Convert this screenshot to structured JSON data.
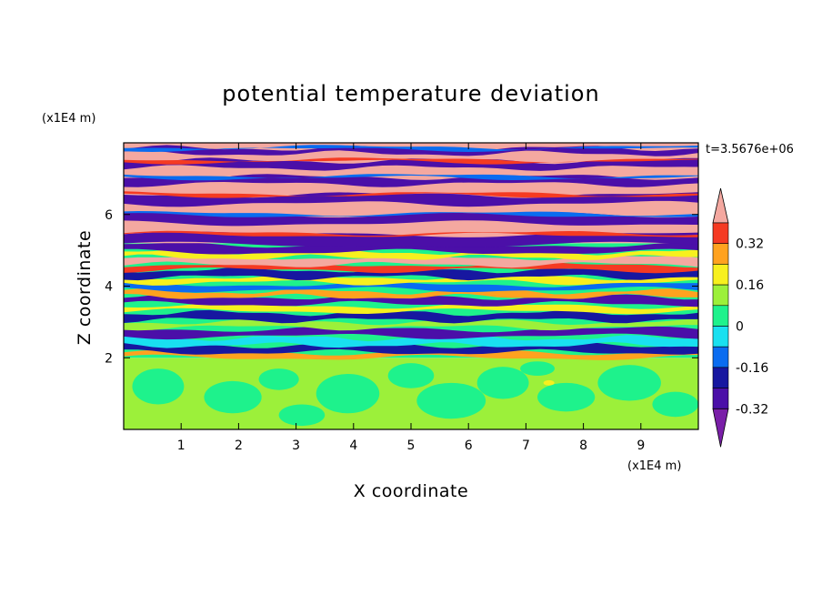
{
  "chart_data": {
    "type": "heatmap",
    "title": "potential temperature deviation",
    "xlabel": "X coordinate",
    "ylabel": "Z coordinate",
    "x_unit": "(x1E4 m)",
    "y_unit": "(x1E4 m)",
    "time_label": "t=3.5676e+06",
    "x_ticks": [
      "1",
      "2",
      "3",
      "4",
      "5",
      "6",
      "7",
      "8",
      "9"
    ],
    "y_ticks": [
      "2",
      "4",
      "6"
    ],
    "xlim": [
      0,
      10
    ],
    "ylim": [
      0,
      8
    ],
    "colorbar": {
      "tick_labels": [
        "0.32",
        "0.16",
        "0",
        "-0.16",
        "-0.32"
      ],
      "tick_values": [
        0.32,
        0.16,
        0,
        -0.16,
        -0.32
      ],
      "levels": [
        -0.4,
        -0.32,
        -0.24,
        -0.16,
        -0.08,
        0,
        0.08,
        0.16,
        0.24,
        0.32,
        0.4
      ],
      "colors": [
        "#7a1fa8",
        "#4b0fa8",
        "#1717a0",
        "#0a6cf0",
        "#19e0f0",
        "#1ef28c",
        "#9cf03a",
        "#f7f01e",
        "#ffa21f",
        "#f53a22",
        "#f4a8a0"
      ],
      "extend": "both"
    },
    "description_layers": [
      {
        "z_range": [
          0,
          2
        ],
        "pattern": "mixed green blobs",
        "colors": [
          "#9cf03a",
          "#1ef28c"
        ]
      },
      {
        "z_range": [
          2,
          5
        ],
        "pattern": "turbulent multicolor bands"
      },
      {
        "z_range": [
          5,
          8
        ],
        "pattern": "alternating purple and pink stripes",
        "colors": [
          "#7a1fa8",
          "#f4a8a0"
        ]
      }
    ]
  }
}
